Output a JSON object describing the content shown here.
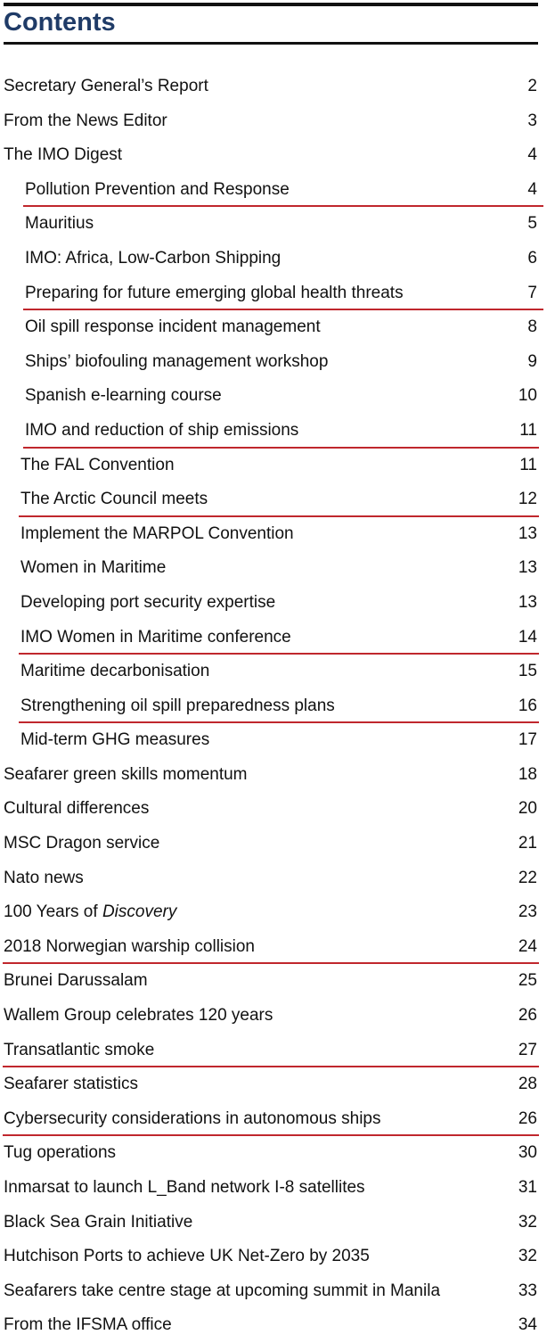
{
  "header": {
    "title": "Contents"
  },
  "colors": {
    "title": "#1f3b67",
    "underline": "#c0272d",
    "rule": "#111111"
  },
  "entries": [
    {
      "label": "Secretary General’s Report",
      "page": "2"
    },
    {
      "label": "From the News Editor",
      "page": "3"
    },
    {
      "label": "The IMO Digest",
      "page": "4"
    },
    {
      "label": "Pollution Prevention and Response",
      "page": "4"
    },
    {
      "label": "Mauritius",
      "page": "5"
    },
    {
      "label": "IMO: Africa, Low-Carbon Shipping",
      "page": "6"
    },
    {
      "label": "Preparing for future emerging global health threats",
      "page": "7"
    },
    {
      "label": "Oil spill response incident management",
      "page": "8"
    },
    {
      "label": "Ships’ biofouling management workshop",
      "page": "9"
    },
    {
      "label": "Spanish e-learning course",
      "page": "10"
    },
    {
      "label": "IMO and reduction of ship emissions",
      "page": "11"
    },
    {
      "label": "The FAL Convention",
      "page": "11"
    },
    {
      "label": "The Arctic Council meets",
      "page": "12"
    },
    {
      "label": "Implement the MARPOL Convention",
      "page": "13"
    },
    {
      "label": "Women in Maritime",
      "page": "13"
    },
    {
      "label": "Developing port security expertise",
      "page": "13"
    },
    {
      "label": "IMO Women in Maritime conference",
      "page": "14"
    },
    {
      "label": "Maritime decarbonisation",
      "page": "15"
    },
    {
      "label": "Strengthening oil spill preparedness plans",
      "page": "16"
    },
    {
      "label": "Mid-term GHG measures",
      "page": "17"
    },
    {
      "label": "Seafarer green skills momentum",
      "page": "18"
    },
    {
      "label": "Cultural differences",
      "page": "20"
    },
    {
      "label": "MSC Dragon service",
      "page": "21"
    },
    {
      "label": "Nato news",
      "page": "22"
    },
    {
      "label_prefix": "100 Years of ",
      "label_italic": "Discovery",
      "page": "23"
    },
    {
      "label": "2018 Norwegian warship collision",
      "page": "24"
    },
    {
      "label": "Brunei Darussalam",
      "page": "25"
    },
    {
      "label": "Wallem Group celebrates 120 years",
      "page": "26"
    },
    {
      "label": "Transatlantic smoke",
      "page": "27"
    },
    {
      "label": "Seafarer statistics",
      "page": "28"
    },
    {
      "label": "Cybersecurity considerations in autonomous ships",
      "page": "26"
    },
    {
      "label": "Tug operations",
      "page": "30"
    },
    {
      "label": "Inmarsat to launch L_Band network I-8 satellites",
      "page": "31"
    },
    {
      "label": "Black Sea Grain Initiative",
      "page": "32"
    },
    {
      "label": "Hutchison Ports to achieve UK Net-Zero by 2035",
      "page": "32"
    },
    {
      "label": "Seafarers take centre stage at upcoming summit in Manila",
      "page": "33"
    },
    {
      "label": "From the IFSMA office",
      "page": "34"
    }
  ]
}
